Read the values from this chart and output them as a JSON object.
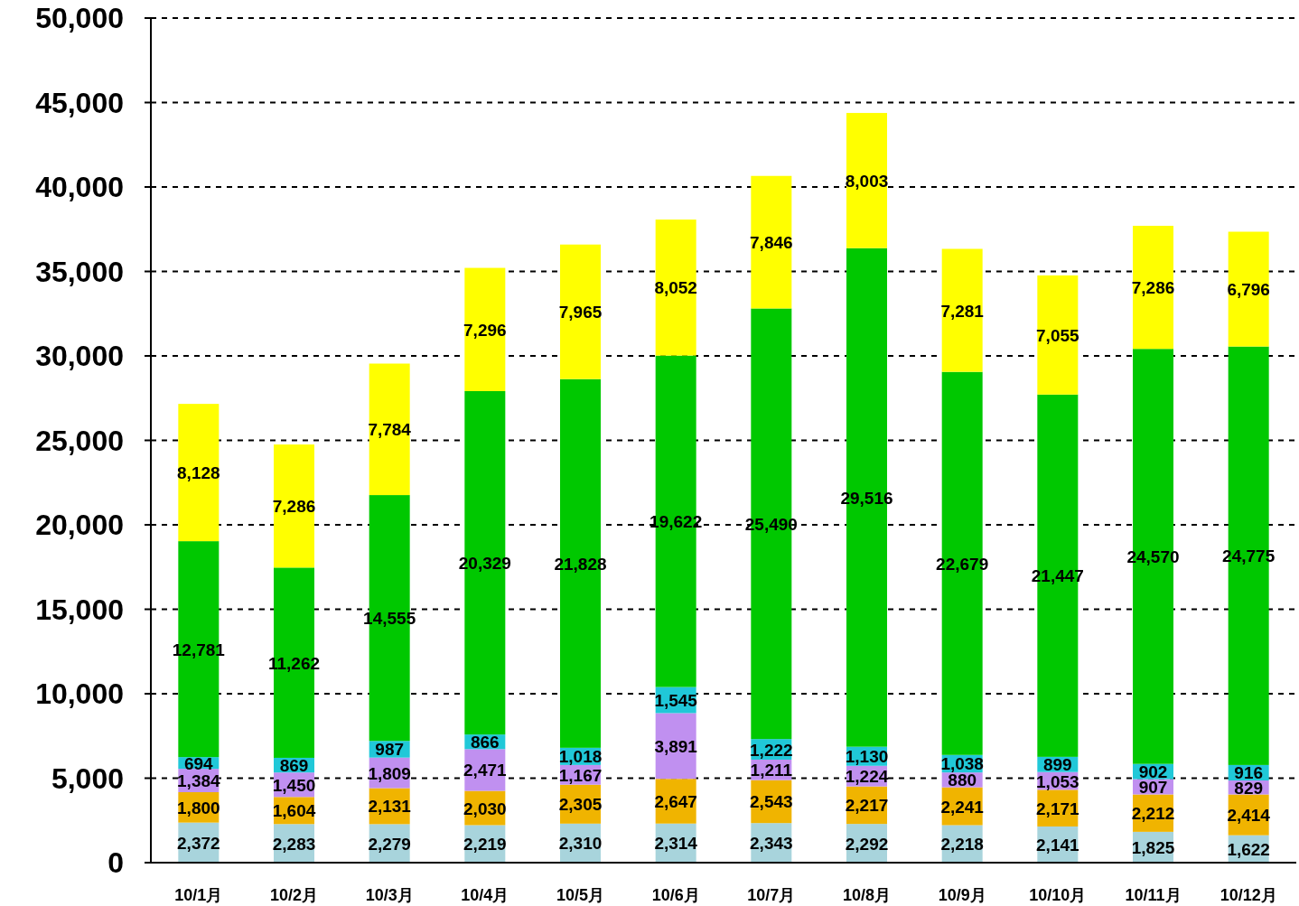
{
  "chart_data": {
    "type": "bar",
    "stacked": true,
    "grid": "y",
    "categories": [
      "10/1月",
      "10/2月",
      "10/3月",
      "10/4月",
      "10/5月",
      "10/6月",
      "10/7月",
      "10/8月",
      "10/9月",
      "10/10月",
      "10/11月",
      "10/12月"
    ],
    "ylim": [
      0,
      50000
    ],
    "yticks": [
      0,
      {
        "value": 5000,
        "label": "5,000"
      },
      {
        "value": 10000,
        "label": "10,000"
      },
      {
        "value": 15000,
        "label": "15,000"
      },
      {
        "value": 20000,
        "label": "20,000"
      },
      {
        "value": 25000,
        "label": "25,000"
      },
      {
        "value": 30000,
        "label": "30,000"
      },
      {
        "value": 35000,
        "label": "35,000"
      },
      {
        "value": 40000,
        "label": "40,000"
      },
      {
        "value": 45000,
        "label": "45,000"
      },
      {
        "value": 50000,
        "label": "50,000"
      }
    ],
    "series": [
      {
        "color": "#a8d4dc",
        "values": [
          2372,
          2283,
          2279,
          2219,
          2310,
          2314,
          2343,
          2292,
          2218,
          2141,
          1825,
          1622
        ],
        "value_labels": [
          "2,372",
          "2,283",
          "2,279",
          "2,219",
          "2,310",
          "2,314",
          "2,343",
          "2,292",
          "2,218",
          "2,141",
          "1,825",
          "1,622"
        ]
      },
      {
        "color": "#f0b400",
        "values": [
          1800,
          1604,
          2131,
          2030,
          2305,
          2647,
          2543,
          2217,
          2241,
          2171,
          2212,
          2414
        ],
        "value_labels": [
          "1,800",
          "1,604",
          "2,131",
          "2,030",
          "2,305",
          "2,647",
          "2,543",
          "2,217",
          "2,241",
          "2,171",
          "2,212",
          "2,414"
        ]
      },
      {
        "color": "#c090f0",
        "values": [
          1384,
          1450,
          1809,
          2471,
          1167,
          3891,
          1211,
          1224,
          880,
          1053,
          907,
          829
        ],
        "value_labels": [
          "1,384",
          "1,450",
          "1,809",
          "2,471",
          "1,167",
          "3,891",
          "1,211",
          "1,224",
          "880",
          "1,053",
          "907",
          "829"
        ]
      },
      {
        "color": "#20c8d8",
        "values": [
          694,
          869,
          987,
          866,
          1018,
          1545,
          1222,
          1130,
          1038,
          899,
          902,
          916
        ],
        "value_labels": [
          "694",
          "869",
          "987",
          "866",
          "1,018",
          "1,545",
          "1,222",
          "1,130",
          "1,038",
          "899",
          "902",
          "916"
        ]
      },
      {
        "color": "#00c800",
        "values": [
          12781,
          11262,
          14555,
          20329,
          21828,
          19622,
          25490,
          29516,
          22679,
          21447,
          24570,
          24775
        ],
        "value_labels": [
          "12,781",
          "11,262",
          "14,555",
          "20,329",
          "21,828",
          "19,622",
          "25,490",
          "29,516",
          "22,679",
          "21,447",
          "24,570",
          "24,775"
        ]
      },
      {
        "color": "#ffff00",
        "values": [
          8128,
          7286,
          7784,
          7296,
          7965,
          8052,
          7846,
          8003,
          7281,
          7055,
          7286,
          6796
        ],
        "value_labels": [
          "8,128",
          "7,286",
          "7,784",
          "7,296",
          "7,965",
          "8,052",
          "7,846",
          "8,003",
          "7,281",
          "7,055",
          "7,286",
          "6,796"
        ]
      }
    ]
  }
}
